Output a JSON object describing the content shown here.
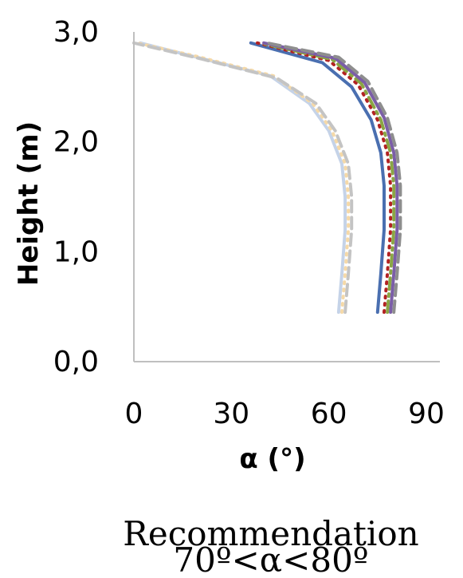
{
  "chart_data": {
    "type": "line",
    "orientation": "profile",
    "xlabel": "α (°)",
    "ylabel": "Height (m)",
    "xlim": [
      0,
      90
    ],
    "ylim": [
      0,
      3
    ],
    "x_ticks": [
      "0",
      "30",
      "60",
      "90"
    ],
    "y_ticks": [
      "0,0",
      "1,0",
      "2,0",
      "3,0"
    ],
    "grid": false,
    "legend": "none",
    "series": [
      {
        "color": "#c5d3e8",
        "style": "solid",
        "points": [
          [
            63,
            0.45
          ],
          [
            64,
            0.8
          ],
          [
            65,
            1.2
          ],
          [
            65,
            1.5
          ],
          [
            64,
            1.8
          ],
          [
            60,
            2.1
          ],
          [
            54,
            2.35
          ],
          [
            42,
            2.6
          ],
          [
            18,
            2.78
          ],
          [
            2,
            2.9
          ]
        ]
      },
      {
        "color": "#f5d9a8",
        "style": "dotted",
        "points": [
          [
            64,
            0.45
          ],
          [
            65,
            0.8
          ],
          [
            66,
            1.2
          ],
          [
            66,
            1.5
          ],
          [
            65,
            1.8
          ],
          [
            61,
            2.1
          ],
          [
            55,
            2.35
          ],
          [
            43,
            2.6
          ],
          [
            19,
            2.78
          ],
          [
            1,
            2.9
          ]
        ]
      },
      {
        "color": "#c4c4c4",
        "style": "dashed",
        "points": [
          [
            65,
            0.45
          ],
          [
            66,
            0.8
          ],
          [
            67,
            1.2
          ],
          [
            67,
            1.5
          ],
          [
            66,
            1.8
          ],
          [
            62,
            2.1
          ],
          [
            56,
            2.35
          ],
          [
            44,
            2.58
          ],
          [
            20,
            2.76
          ],
          [
            0,
            2.9
          ]
        ]
      },
      {
        "color": "#4a6fb0",
        "style": "solid",
        "points": [
          [
            75,
            0.45
          ],
          [
            76,
            0.8
          ],
          [
            77,
            1.2
          ],
          [
            77,
            1.6
          ],
          [
            76,
            1.9
          ],
          [
            73,
            2.2
          ],
          [
            67,
            2.5
          ],
          [
            58,
            2.72
          ],
          [
            36,
            2.9
          ]
        ]
      },
      {
        "color": "#b22222",
        "style": "dotted",
        "points": [
          [
            77,
            0.45
          ],
          [
            78,
            0.8
          ],
          [
            79,
            1.2
          ],
          [
            79,
            1.6
          ],
          [
            78,
            1.9
          ],
          [
            75,
            2.2
          ],
          [
            69,
            2.52
          ],
          [
            60,
            2.74
          ],
          [
            38,
            2.9
          ]
        ]
      },
      {
        "color": "#8aa645",
        "style": "dashdot",
        "points": [
          [
            78,
            0.45
          ],
          [
            79,
            0.8
          ],
          [
            80,
            1.2
          ],
          [
            80,
            1.6
          ],
          [
            79,
            1.9
          ],
          [
            76,
            2.2
          ],
          [
            70,
            2.53
          ],
          [
            61,
            2.75
          ],
          [
            39,
            2.9
          ]
        ]
      },
      {
        "color": "#7b5ea7",
        "style": "solid",
        "points": [
          [
            79,
            0.45
          ],
          [
            80,
            0.8
          ],
          [
            81,
            1.2
          ],
          [
            81,
            1.6
          ],
          [
            80,
            1.9
          ],
          [
            77,
            2.22
          ],
          [
            71,
            2.54
          ],
          [
            62,
            2.76
          ],
          [
            40,
            2.9
          ]
        ]
      },
      {
        "color": "#8e8e8e",
        "style": "dashed",
        "points": [
          [
            80,
            0.45
          ],
          [
            81,
            0.8
          ],
          [
            82,
            1.2
          ],
          [
            82,
            1.6
          ],
          [
            81,
            1.9
          ],
          [
            78,
            2.22
          ],
          [
            72,
            2.55
          ],
          [
            63,
            2.77
          ],
          [
            41,
            2.9
          ]
        ]
      }
    ]
  },
  "caption": {
    "line1": "Recommendation",
    "line2": "70º<α<80º"
  }
}
